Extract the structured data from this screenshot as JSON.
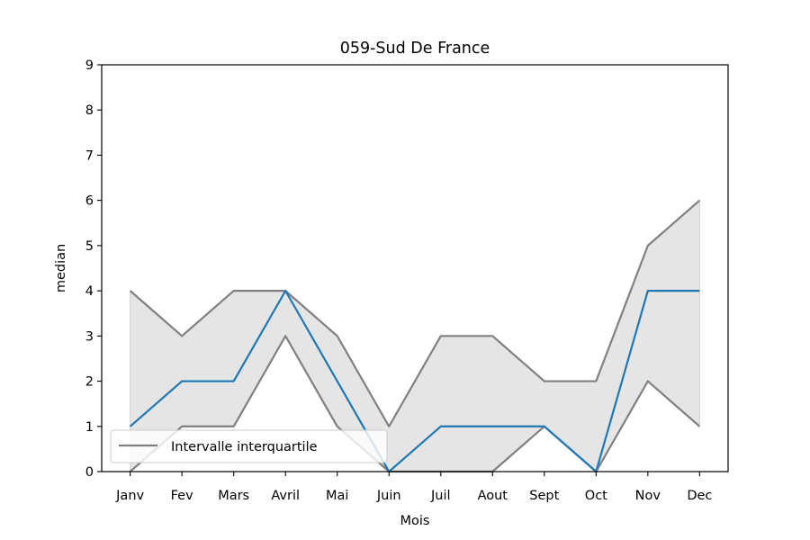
{
  "chart_data": {
    "type": "line",
    "title": "059-Sud De France",
    "xlabel": "Mois",
    "ylabel": "median",
    "categories": [
      "Janv",
      "Fev",
      "Mars",
      "Avril",
      "Mai",
      "Juin",
      "Juil",
      "Aout",
      "Sept",
      "Oct",
      "Nov",
      "Dec"
    ],
    "ylim": [
      0,
      9
    ],
    "yticks": [
      "0",
      "1",
      "2",
      "3",
      "4",
      "5",
      "6",
      "7",
      "8",
      "9"
    ],
    "grid": false,
    "legend_position": "lower-left",
    "series": [
      {
        "role": "median",
        "values": [
          1,
          2,
          2,
          4,
          2,
          0,
          1,
          1,
          1,
          0,
          4,
          4
        ]
      },
      {
        "role": "q1",
        "values": [
          0,
          1,
          1,
          3,
          1,
          0,
          0,
          0,
          1,
          0,
          2,
          1
        ]
      },
      {
        "role": "q3",
        "values": [
          4,
          3,
          4,
          4,
          3,
          1,
          3,
          3,
          2,
          2,
          5,
          6
        ]
      }
    ],
    "legend": [
      {
        "label": "Intervalle interquartile"
      }
    ],
    "colors": {
      "median": "#1f77b4",
      "quartile": "#808080",
      "band": "#e5e5e5",
      "band_edge": "#d0d0d0"
    }
  }
}
